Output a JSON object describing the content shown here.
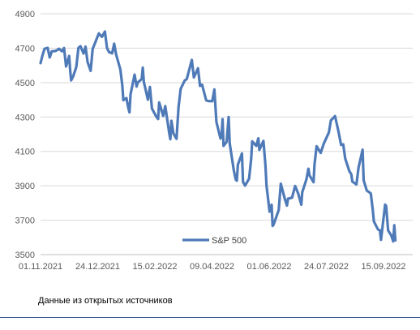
{
  "source_note": "Данные из открытых источников",
  "colors": {
    "line": "#4f7ab8",
    "grid": "#d9d9d9",
    "text": "#595959",
    "rule": "#2b4d8c"
  },
  "chart_data": {
    "type": "line",
    "title": "",
    "xlabel": "",
    "ylabel": "",
    "ylim": [
      3500,
      4900
    ],
    "yticks": [
      3500,
      3700,
      3900,
      4100,
      4300,
      4500,
      4700,
      4900
    ],
    "xticks": [
      "01.11.2021",
      "24.12.2021",
      "15.02.2022",
      "09.04.2022",
      "01.06.2022",
      "24.07.2022",
      "15.09.2022"
    ],
    "xlim": [
      "2021-11-01",
      "2022-10-31"
    ],
    "grid": "horizontal",
    "legend": "bottom-center",
    "series": [
      {
        "name": "S&P 500",
        "points": [
          [
            "2021-11-01",
            4613
          ],
          [
            "2021-11-03",
            4660
          ],
          [
            "2021-11-05",
            4697
          ],
          [
            "2021-11-08",
            4702
          ],
          [
            "2021-11-10",
            4646
          ],
          [
            "2021-11-12",
            4682
          ],
          [
            "2021-11-15",
            4683
          ],
          [
            "2021-11-17",
            4688
          ],
          [
            "2021-11-19",
            4697
          ],
          [
            "2021-11-22",
            4682
          ],
          [
            "2021-11-24",
            4701
          ],
          [
            "2021-11-26",
            4594
          ],
          [
            "2021-11-29",
            4655
          ],
          [
            "2021-11-30",
            4567
          ],
          [
            "2021-12-01",
            4513
          ],
          [
            "2021-12-03",
            4538
          ],
          [
            "2021-12-06",
            4591
          ],
          [
            "2021-12-08",
            4701
          ],
          [
            "2021-12-10",
            4712
          ],
          [
            "2021-12-13",
            4669
          ],
          [
            "2021-12-15",
            4709
          ],
          [
            "2021-12-17",
            4620
          ],
          [
            "2021-12-20",
            4568
          ],
          [
            "2021-12-22",
            4696
          ],
          [
            "2021-12-24",
            4725
          ],
          [
            "2021-12-28",
            4786
          ],
          [
            "2021-12-31",
            4766
          ],
          [
            "2022-01-03",
            4797
          ],
          [
            "2022-01-05",
            4700
          ],
          [
            "2022-01-07",
            4677
          ],
          [
            "2022-01-10",
            4670
          ],
          [
            "2022-01-12",
            4726
          ],
          [
            "2022-01-14",
            4662
          ],
          [
            "2022-01-18",
            4577
          ],
          [
            "2022-01-20",
            4482
          ],
          [
            "2022-01-21",
            4398
          ],
          [
            "2022-01-24",
            4410
          ],
          [
            "2022-01-26",
            4350
          ],
          [
            "2022-01-27",
            4327
          ],
          [
            "2022-01-28",
            4432
          ],
          [
            "2022-02-01",
            4546
          ],
          [
            "2022-02-03",
            4477
          ],
          [
            "2022-02-04",
            4500
          ],
          [
            "2022-02-08",
            4521
          ],
          [
            "2022-02-09",
            4587
          ],
          [
            "2022-02-10",
            4504
          ],
          [
            "2022-02-14",
            4401
          ],
          [
            "2022-02-16",
            4475
          ],
          [
            "2022-02-18",
            4349
          ],
          [
            "2022-02-22",
            4304
          ],
          [
            "2022-02-24",
            4288
          ],
          [
            "2022-02-25",
            4385
          ],
          [
            "2022-03-01",
            4306
          ],
          [
            "2022-03-03",
            4363
          ],
          [
            "2022-03-07",
            4201
          ],
          [
            "2022-03-08",
            4171
          ],
          [
            "2022-03-09",
            4278
          ],
          [
            "2022-03-11",
            4204
          ],
          [
            "2022-03-14",
            4173
          ],
          [
            "2022-03-16",
            4357
          ],
          [
            "2022-03-18",
            4463
          ],
          [
            "2022-03-22",
            4512
          ],
          [
            "2022-03-24",
            4520
          ],
          [
            "2022-03-29",
            4632
          ],
          [
            "2022-03-31",
            4530
          ],
          [
            "2022-04-04",
            4583
          ],
          [
            "2022-04-06",
            4481
          ],
          [
            "2022-04-08",
            4488
          ],
          [
            "2022-04-12",
            4397
          ],
          [
            "2022-04-14",
            4393
          ],
          [
            "2022-04-18",
            4392
          ],
          [
            "2022-04-20",
            4460
          ],
          [
            "2022-04-22",
            4272
          ],
          [
            "2022-04-26",
            4175
          ],
          [
            "2022-04-27",
            4183
          ],
          [
            "2022-04-28",
            4287
          ],
          [
            "2022-04-29",
            4132
          ],
          [
            "2022-05-02",
            4155
          ],
          [
            "2022-05-04",
            4300
          ],
          [
            "2022-05-05",
            4147
          ],
          [
            "2022-05-09",
            3991
          ],
          [
            "2022-05-11",
            3935
          ],
          [
            "2022-05-12",
            3930
          ],
          [
            "2022-05-13",
            4023
          ],
          [
            "2022-05-17",
            4088
          ],
          [
            "2022-05-18",
            3923
          ],
          [
            "2022-05-20",
            3901
          ],
          [
            "2022-05-24",
            3941
          ],
          [
            "2022-05-26",
            4057
          ],
          [
            "2022-05-27",
            4158
          ],
          [
            "2022-05-31",
            4132
          ],
          [
            "2022-06-02",
            4176
          ],
          [
            "2022-06-03",
            4109
          ],
          [
            "2022-06-07",
            4161
          ],
          [
            "2022-06-09",
            4018
          ],
          [
            "2022-06-10",
            3901
          ],
          [
            "2022-06-13",
            3750
          ],
          [
            "2022-06-15",
            3790
          ],
          [
            "2022-06-16",
            3667
          ],
          [
            "2022-06-17",
            3675
          ],
          [
            "2022-06-22",
            3760
          ],
          [
            "2022-06-24",
            3912
          ],
          [
            "2022-06-28",
            3822
          ],
          [
            "2022-06-30",
            3785
          ],
          [
            "2022-07-01",
            3825
          ],
          [
            "2022-07-05",
            3831
          ],
          [
            "2022-07-08",
            3899
          ],
          [
            "2022-07-11",
            3855
          ],
          [
            "2022-07-14",
            3790
          ],
          [
            "2022-07-15",
            3863
          ],
          [
            "2022-07-19",
            3937
          ],
          [
            "2022-07-21",
            3999
          ],
          [
            "2022-07-22",
            3962
          ],
          [
            "2022-07-26",
            3921
          ],
          [
            "2022-07-27",
            4024
          ],
          [
            "2022-07-29",
            4130
          ],
          [
            "2022-08-02",
            4091
          ],
          [
            "2022-08-05",
            4145
          ],
          [
            "2022-08-10",
            4210
          ],
          [
            "2022-08-12",
            4280
          ],
          [
            "2022-08-16",
            4305
          ],
          [
            "2022-08-19",
            4228
          ],
          [
            "2022-08-22",
            4138
          ],
          [
            "2022-08-24",
            4141
          ],
          [
            "2022-08-26",
            4058
          ],
          [
            "2022-08-30",
            3986
          ],
          [
            "2022-09-01",
            3966
          ],
          [
            "2022-09-02",
            3924
          ],
          [
            "2022-09-06",
            3908
          ],
          [
            "2022-09-08",
            4006
          ],
          [
            "2022-09-12",
            4110
          ],
          [
            "2022-09-13",
            3932
          ],
          [
            "2022-09-16",
            3873
          ],
          [
            "2022-09-20",
            3856
          ],
          [
            "2022-09-22",
            3758
          ],
          [
            "2022-09-23",
            3693
          ],
          [
            "2022-09-27",
            3647
          ],
          [
            "2022-09-29",
            3640
          ],
          [
            "2022-09-30",
            3586
          ],
          [
            "2022-10-04",
            3791
          ],
          [
            "2022-10-05",
            3783
          ],
          [
            "2022-10-07",
            3640
          ],
          [
            "2022-10-10",
            3612
          ],
          [
            "2022-10-12",
            3577
          ],
          [
            "2022-10-13",
            3670
          ],
          [
            "2022-10-14",
            3583
          ]
        ]
      }
    ]
  }
}
